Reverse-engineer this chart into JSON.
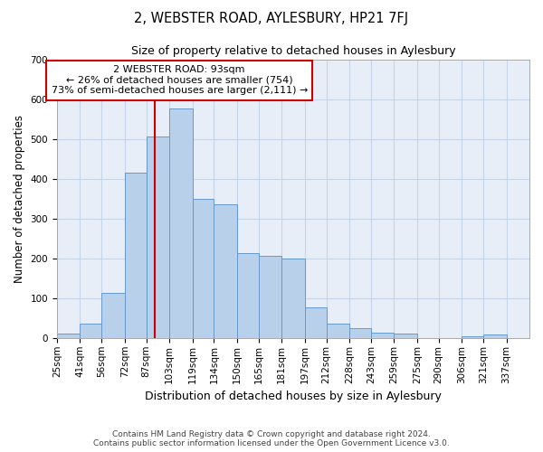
{
  "title": "2, WEBSTER ROAD, AYLESBURY, HP21 7FJ",
  "subtitle": "Size of property relative to detached houses in Aylesbury",
  "xlabel": "Distribution of detached houses by size in Aylesbury",
  "ylabel": "Number of detached properties",
  "footer_line1": "Contains HM Land Registry data © Crown copyright and database right 2024.",
  "footer_line2": "Contains public sector information licensed under the Open Government Licence v3.0.",
  "bar_labels": [
    "25sqm",
    "41sqm",
    "56sqm",
    "72sqm",
    "87sqm",
    "103sqm",
    "119sqm",
    "134sqm",
    "150sqm",
    "165sqm",
    "181sqm",
    "197sqm",
    "212sqm",
    "228sqm",
    "243sqm",
    "259sqm",
    "275sqm",
    "290sqm",
    "306sqm",
    "321sqm",
    "337sqm"
  ],
  "bar_values": [
    10,
    35,
    113,
    415,
    507,
    577,
    349,
    335,
    213,
    207,
    200,
    78,
    35,
    25,
    13,
    12,
    0,
    0,
    5,
    8,
    0
  ],
  "bar_color": "#b8d0ea",
  "bar_edgecolor": "#6699cc",
  "grid_color": "#c8d4e8",
  "background_color": "#e8eef8",
  "annotation_text": "2 WEBSTER ROAD: 93sqm\n← 26% of detached houses are smaller (754)\n73% of semi-detached houses are larger (2,111) →",
  "annotation_box_edgecolor": "#cc0000",
  "vline_x": 93,
  "vline_color": "#cc0000",
  "ylim": [
    0,
    700
  ],
  "yticks": [
    0,
    100,
    200,
    300,
    400,
    500,
    600,
    700
  ],
  "bin_edges": [
    25,
    41,
    56,
    72,
    87,
    103,
    119,
    134,
    150,
    165,
    181,
    197,
    212,
    228,
    243,
    259,
    275,
    290,
    306,
    321,
    337,
    353
  ]
}
